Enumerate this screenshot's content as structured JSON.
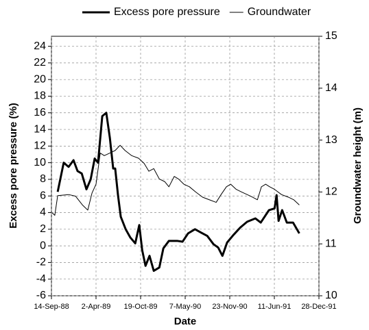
{
  "chart_data": {
    "type": "line",
    "xlabel": "Date",
    "ylabel": "Excess pore pressure (%)",
    "y2label": "Groundwater height (m)",
    "xlim": [
      "1988-09-14",
      "1991-12-28"
    ],
    "xticks": [
      {
        "value": "1988-09-14",
        "label": "14-Sep-88"
      },
      {
        "value": "1989-04-02",
        "label": "2-Apr-89"
      },
      {
        "value": "1989-10-19",
        "label": "19-Oct-89"
      },
      {
        "value": "1990-05-07",
        "label": "7-May-90"
      },
      {
        "value": "1990-11-23",
        "label": "23-Nov-90"
      },
      {
        "value": "1991-06-11",
        "label": "11-Jun-91"
      },
      {
        "value": "1991-12-28",
        "label": "28-Dec-91"
      }
    ],
    "ylim": [
      -6,
      25.2
    ],
    "yticks": [
      -6,
      -4,
      -2,
      0,
      2,
      4,
      6,
      8,
      10,
      12,
      14,
      16,
      18,
      20,
      22,
      24
    ],
    "y2lim": [
      10,
      15
    ],
    "y2ticks": [
      10,
      11,
      12,
      13,
      14,
      15
    ],
    "grid": true,
    "legend": "top",
    "series": [
      {
        "name": "Excess pore pressure",
        "color": "#000000",
        "line_width": 3,
        "x": [
          "1988-10-12",
          "1988-11-08",
          "1988-11-30",
          "1988-12-22",
          "1989-01-09",
          "1989-01-28",
          "1989-02-18",
          "1989-03-09",
          "1989-03-27",
          "1989-04-11",
          "1989-04-30",
          "1989-05-18",
          "1989-06-03",
          "1989-06-18",
          "1989-06-27",
          "1989-07-10",
          "1989-07-22",
          "1989-08-13",
          "1989-09-03",
          "1989-09-25",
          "1989-10-13",
          "1989-10-26",
          "1989-11-10",
          "1989-11-28",
          "1989-12-17",
          "1990-01-11",
          "1990-01-29",
          "1990-02-23",
          "1990-04-01",
          "1990-04-25",
          "1990-05-20",
          "1990-06-20",
          "1990-07-17",
          "1990-08-14",
          "1990-09-11",
          "1990-10-02",
          "1990-10-21",
          "1990-11-11",
          "1990-12-09",
          "1991-01-09",
          "1991-02-09",
          "1991-03-18",
          "1991-04-11",
          "1991-05-18",
          "1991-06-12",
          "1991-06-21",
          "1991-06-30",
          "1991-07-16",
          "1991-08-06",
          "1991-09-03",
          "1991-10-01"
        ],
        "values": [
          6.5,
          10.0,
          9.5,
          10.3,
          9.0,
          8.7,
          6.8,
          8.0,
          10.5,
          10.0,
          15.6,
          16.0,
          13.0,
          9.3,
          9.3,
          6.0,
          3.5,
          2.0,
          1.0,
          0.3,
          2.5,
          -0.5,
          -2.4,
          -1.2,
          -3.0,
          -2.6,
          -0.3,
          0.6,
          0.6,
          0.5,
          1.5,
          2.0,
          1.6,
          1.2,
          0.2,
          -0.2,
          -1.2,
          0.4,
          1.3,
          2.2,
          2.9,
          3.3,
          2.8,
          4.3,
          4.5,
          6.1,
          3.0,
          4.3,
          2.8,
          2.8,
          1.5
        ]
      },
      {
        "name": "Groundwater",
        "color": "#000000",
        "line_width": 1,
        "axis": "y2",
        "x": [
          "1988-09-17",
          "1988-09-29",
          "1988-10-12",
          "1988-11-30",
          "1988-12-31",
          "1989-01-31",
          "1989-02-24",
          "1989-03-15",
          "1989-04-02",
          "1989-04-21",
          "1989-05-09",
          "1989-06-03",
          "1989-06-27",
          "1989-07-19",
          "1989-08-10",
          "1989-09-09",
          "1989-10-10",
          "1989-11-04",
          "1989-11-25",
          "1989-12-17",
          "1990-01-11",
          "1990-02-04",
          "1990-02-23",
          "1990-03-19",
          "1990-04-07",
          "1990-05-01",
          "1990-05-26",
          "1990-06-23",
          "1990-07-24",
          "1990-08-23",
          "1990-09-23",
          "1990-10-15",
          "1990-11-08",
          "1990-11-27",
          "1990-12-22",
          "1991-01-15",
          "1991-02-09",
          "1991-03-05",
          "1991-03-27",
          "1991-04-14",
          "1991-05-03",
          "1991-05-21",
          "1991-06-12",
          "1991-07-13",
          "1991-08-13",
          "1991-09-06",
          "1991-10-01"
        ],
        "values": [
          11.6,
          11.55,
          11.93,
          11.95,
          11.92,
          11.75,
          11.65,
          11.98,
          12.15,
          12.75,
          12.7,
          12.75,
          12.8,
          12.9,
          12.8,
          12.7,
          12.65,
          12.55,
          12.4,
          12.45,
          12.25,
          12.2,
          12.1,
          12.3,
          12.25,
          12.15,
          12.1,
          12.0,
          11.9,
          11.85,
          11.8,
          11.95,
          12.1,
          12.15,
          12.05,
          12.0,
          11.95,
          11.9,
          11.85,
          12.1,
          12.15,
          12.1,
          12.05,
          11.95,
          11.9,
          11.85,
          11.75
        ]
      }
    ]
  }
}
